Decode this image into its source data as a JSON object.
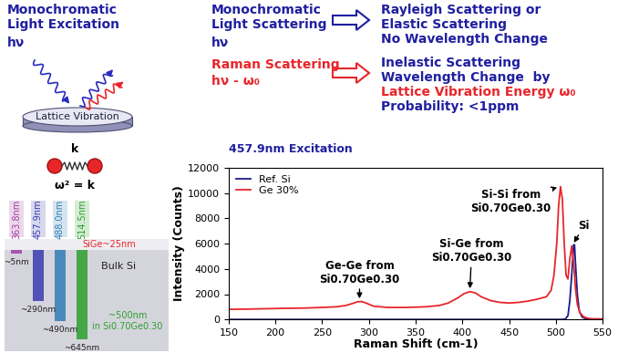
{
  "chart_data": {
    "type": "line",
    "title": "457.9nm Excitation",
    "x_label": "Raman Shift (cm-1)",
    "y_label": "Intensity (Counts)",
    "xlim": [
      150,
      550
    ],
    "xticks": [
      150,
      200,
      250,
      300,
      350,
      400,
      450,
      500,
      550
    ],
    "ylim": [
      0,
      12000
    ],
    "yticks": [
      0,
      2000,
      4000,
      6000,
      8000,
      10000,
      12000
    ],
    "legend": "upper left",
    "series": [
      {
        "name": "Ref. Si",
        "color": "#1a1a8c",
        "x": [
          150,
          300,
          450,
          505,
          510,
          513,
          515,
          517,
          519,
          520,
          521,
          523,
          525,
          528,
          532,
          540,
          550
        ],
        "values": [
          0,
          0,
          0,
          0,
          20,
          300,
          1500,
          3500,
          5900,
          5900,
          4500,
          2000,
          700,
          200,
          50,
          0,
          0
        ]
      },
      {
        "name": "Ge 30%",
        "color": "#e8262a",
        "x": [
          150,
          170,
          190,
          210,
          230,
          250,
          265,
          275,
          282,
          288,
          292,
          297,
          305,
          320,
          340,
          360,
          375,
          385,
          395,
          402,
          408,
          414,
          420,
          430,
          440,
          450,
          460,
          470,
          480,
          490,
          495,
          498,
          501,
          503,
          505,
          507,
          509,
          511,
          513,
          515,
          517,
          519,
          521,
          523,
          526,
          530,
          535,
          540,
          550
        ],
        "values": [
          800,
          820,
          850,
          880,
          900,
          950,
          1000,
          1100,
          1250,
          1400,
          1420,
          1300,
          1050,
          950,
          950,
          1000,
          1100,
          1300,
          1700,
          2050,
          2200,
          2100,
          1800,
          1500,
          1350,
          1300,
          1350,
          1450,
          1600,
          1800,
          2300,
          3500,
          6000,
          9000,
          10500,
          9500,
          6000,
          3500,
          3200,
          4800,
          5800,
          4500,
          2500,
          1200,
          500,
          200,
          80,
          50,
          50
        ]
      }
    ],
    "annotations": [
      {
        "text": "Ge-Ge from\nSi0.70Ge0.30",
        "x": 290,
        "y": 1450
      },
      {
        "text": "Si-Ge from\nSi0.70Ge0.30",
        "x": 408,
        "y": 2250
      },
      {
        "text": "Si-Si from\nSi0.70Ge0.30",
        "x": 504,
        "y": 10500
      },
      {
        "text": "Si",
        "x": 518,
        "y": 5900
      }
    ]
  },
  "diagram": {
    "excitation": {
      "title": "Monochromatic\nLight Excitation",
      "symbol": "hν",
      "surface": "Lattice Vibration"
    },
    "scattering": {
      "title": "Monochromatic\nLight Scattering",
      "symbol": "hν",
      "result": "Rayleigh Scattering or\nElastic Scattering\nNo Wavelength Change"
    },
    "raman": {
      "title": "Raman Scattering",
      "symbol": "hν - ω₀",
      "result_lines": [
        "Inelastic Scattering",
        "Wavelength Change  by",
        "Lattice Vibration Energy ω₀",
        "Probability: <1ppm"
      ],
      "colors": [
        "#1f1fa0",
        "#1f1fa0",
        "#e8262a",
        "#1f1fa0"
      ]
    },
    "spring": {
      "constant": "k",
      "equation": "ω² = k"
    },
    "penetration": {
      "layer": "SiGe~25nm",
      "bulk": "Bulk Si",
      "note": "~500nm\nin Si0.70Ge0.30",
      "wavelengths": [
        {
          "label": "363.8nm",
          "depth": "~5nm",
          "color": "#a040a0"
        },
        {
          "label": "457.9nm",
          "depth": "~290nm",
          "color": "#3a3ab0"
        },
        {
          "label": "488.0nm",
          "depth": "~490nm",
          "color": "#2e7db4"
        },
        {
          "label": "514.5nm",
          "depth": "~645nm",
          "color": "#2ca02c"
        }
      ]
    }
  }
}
